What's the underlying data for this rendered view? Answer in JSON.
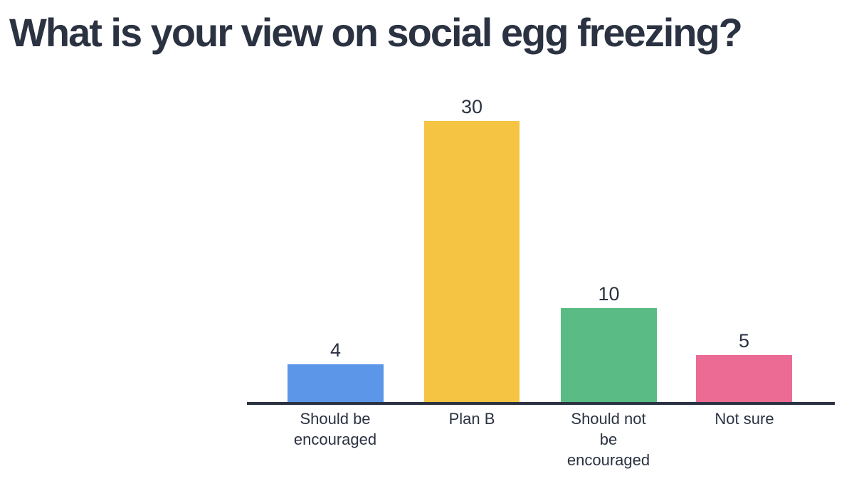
{
  "chart_data": {
    "type": "bar",
    "title": "What is your view on social egg freezing?",
    "categories": [
      "Should be\nencouraged",
      "Plan B",
      "Should not\nbe\nencouraged",
      "Not sure"
    ],
    "values": [
      4,
      30,
      10,
      5
    ],
    "colors": [
      "#5b96e8",
      "#f5c443",
      "#5abc84",
      "#ec6b94"
    ],
    "value_labels_shown": true,
    "xlabel": "",
    "ylabel": "",
    "ylim": [
      0,
      30
    ],
    "grid": false,
    "legend": false,
    "axis_color": "#2b3241",
    "text_color": "#2b3241",
    "background_color": "#ffffff"
  }
}
